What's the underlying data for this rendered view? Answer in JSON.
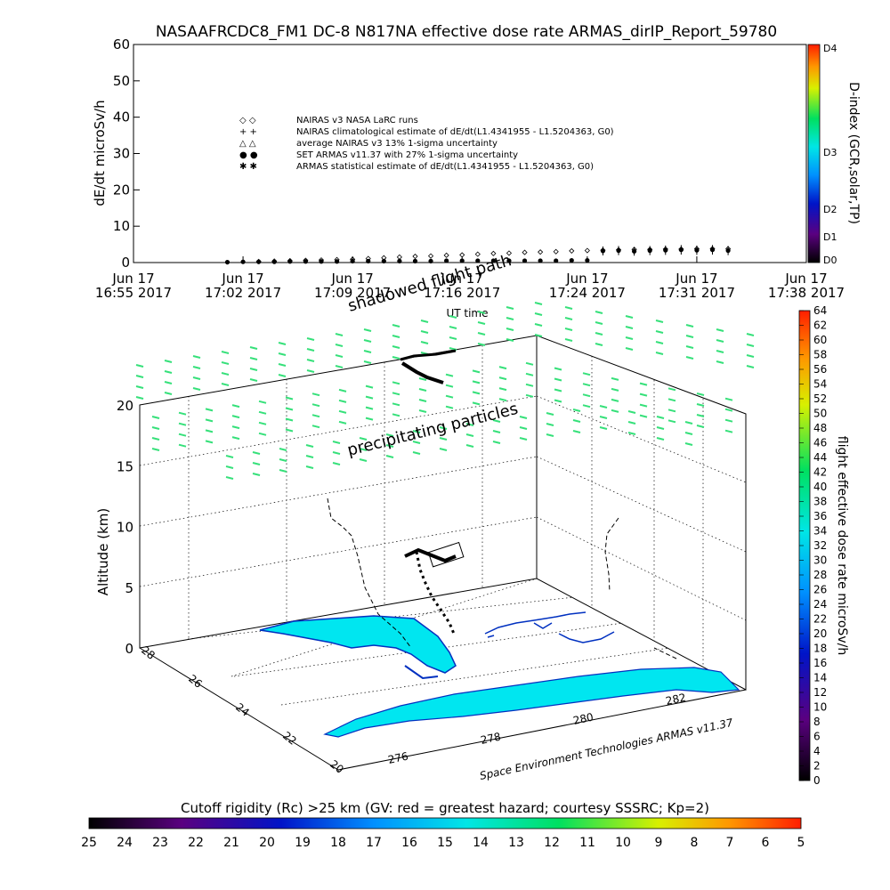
{
  "title": "NASAAFRCDC8_FM1 DC-8    N817NA effective dose rate ARMAS_dirIP_Report_59780",
  "chart_data": [
    {
      "type": "scatter",
      "ylabel": "dE/dt microSv/h",
      "xlabel": "UT time",
      "ylim": [
        0,
        60
      ],
      "y_ticks": [
        0,
        10,
        20,
        30,
        40,
        50,
        60
      ],
      "x_ticks": [
        {
          "top": "Jun 17",
          "bottom": "16:55 2017",
          "t": 0
        },
        {
          "top": "Jun 17",
          "bottom": "17:02 2017",
          "t": 7
        },
        {
          "top": "Jun 17",
          "bottom": "17:09 2017",
          "t": 14
        },
        {
          "top": "Jun 17",
          "bottom": "17:16 2017",
          "t": 21
        },
        {
          "top": "Jun 17",
          "bottom": "17:24 2017",
          "t": 29
        },
        {
          "top": "Jun 17",
          "bottom": "17:31 2017",
          "t": 36
        },
        {
          "top": "Jun 17",
          "bottom": "17:38 2017",
          "t": 43
        }
      ],
      "xlim": [
        0,
        43
      ],
      "legend": [
        {
          "symbol": "◇ ◇",
          "label": "NAIRAS v3 NASA LaRC runs"
        },
        {
          "symbol": "+ +",
          "label": "NAIRAS climatological estimate of dE/dt(L1.4341955 - L1.5204363, G0)"
        },
        {
          "symbol": "△ △",
          "label": "average NAIRAS v3 13% 1-sigma uncertainty"
        },
        {
          "symbol": "● ●",
          "label": "SET ARMAS v11.37 with 27% 1-sigma uncertainty"
        },
        {
          "symbol": "✱ ✱",
          "label": "ARMAS statistical estimate of dE/dt(L1.4341955 - L1.5204363, G0)"
        }
      ],
      "series": [
        {
          "name": "NAIRAS v3 NASA LaRC runs",
          "x": [
            8,
            9,
            10,
            11,
            12,
            13,
            14,
            15,
            16,
            17,
            18,
            19,
            20,
            21,
            22,
            23,
            24,
            25,
            26,
            27,
            28,
            29,
            30,
            31,
            32,
            33,
            34,
            35,
            36,
            37,
            38
          ],
          "values": [
            0.3,
            0.4,
            0.5,
            0.6,
            0.7,
            0.8,
            0.9,
            1.1,
            1.3,
            1.5,
            1.7,
            1.8,
            2.0,
            2.1,
            2.3,
            2.5,
            2.6,
            2.8,
            2.9,
            3.0,
            3.2,
            3.3,
            3.4,
            3.5,
            3.6,
            3.6,
            3.7,
            3.7,
            3.8,
            3.8,
            3.8
          ]
        },
        {
          "name": "SET ARMAS v11.37 with 27% 1-sigma uncertainty",
          "x": [
            6,
            7,
            8,
            9,
            10,
            11,
            12,
            13,
            14,
            15,
            16,
            17,
            18,
            19,
            20,
            21,
            22,
            23,
            24,
            25,
            26,
            27,
            28,
            29,
            30,
            31,
            32,
            33,
            34,
            35,
            36,
            37,
            38
          ],
          "values": [
            0.1,
            0.2,
            0.2,
            0.2,
            0.3,
            0.3,
            0.3,
            0.3,
            0.4,
            0.4,
            0.4,
            0.4,
            0.4,
            0.4,
            0.5,
            0.5,
            0.5,
            0.5,
            0.5,
            0.5,
            0.5,
            0.5,
            0.6,
            0.6,
            3.2,
            3.3,
            3.1,
            3.3,
            3.4,
            3.5,
            3.4,
            3.5,
            3.3
          ]
        }
      ],
      "right_colorbar": {
        "label": "D-index (GCR,solar,TP)",
        "ticks": [
          "D4",
          "D3",
          "D2",
          "D1",
          "D0"
        ]
      }
    },
    {
      "type": "scatter",
      "subtype": "3d-trajectory",
      "ylabel": "Altitude (km)",
      "z_ticks": [
        0,
        5,
        10,
        15,
        20
      ],
      "lat_ticks": [
        20,
        22,
        24,
        26,
        28
      ],
      "lon_ticks": [
        276,
        278,
        280,
        282
      ],
      "annotations": [
        "shadowed flight path",
        "precipitating particles"
      ],
      "credit": "Space Environment Technologies ARMAS v11.37",
      "right_colorbar": {
        "label": "flight effective dose rate microSv/h",
        "ticks": [
          0,
          2,
          4,
          6,
          8,
          10,
          12,
          14,
          16,
          18,
          20,
          22,
          24,
          26,
          28,
          30,
          32,
          34,
          36,
          38,
          40,
          42,
          44,
          46,
          48,
          50,
          52,
          54,
          56,
          58,
          60,
          62,
          64
        ]
      },
      "bottom_colorbar": {
        "title": "Cutoff rigidity (Rc) >25 km (GV: red = greatest hazard; courtesy SSSRC; Kp=2)",
        "ticks": [
          25,
          24,
          23,
          22,
          21,
          20,
          19,
          18,
          17,
          16,
          15,
          14,
          13,
          12,
          11,
          10,
          9,
          8,
          7,
          6,
          5
        ]
      }
    }
  ]
}
